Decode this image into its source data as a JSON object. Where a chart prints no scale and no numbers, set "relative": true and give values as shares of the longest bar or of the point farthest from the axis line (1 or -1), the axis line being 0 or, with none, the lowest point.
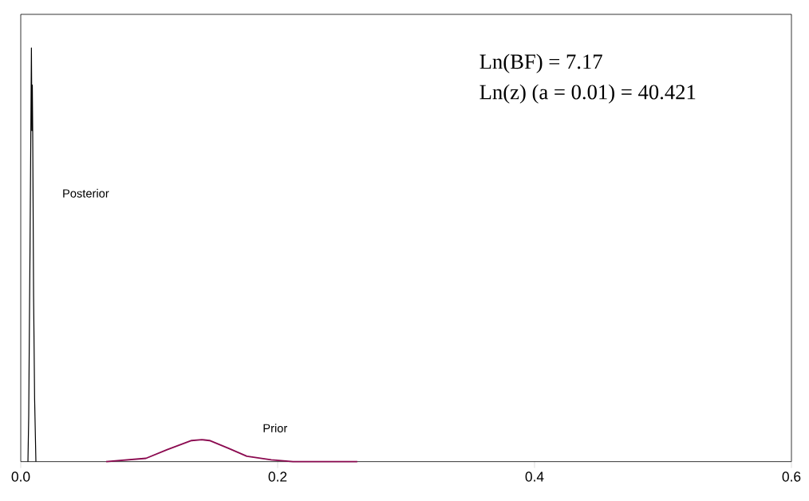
{
  "chart_data": {
    "type": "line",
    "relative": true,
    "x": [
      0.0056,
      0.0062,
      0.0072,
      0.0083,
      0.0087,
      0.009,
      0.0093,
      0.01,
      0.0108,
      0.0118
    ],
    "series": [
      {
        "name": "Posterior",
        "color": "#000000",
        "values": [
          0,
          0.11,
          0.51,
          1.0,
          0.8,
          0.91,
          0.8,
          0.4,
          0.15,
          0
        ]
      },
      {
        "name": "Prior",
        "color": "#8b0a50",
        "x": [
          0.0665,
          0.0975,
          0.114,
          0.133,
          0.141,
          0.147,
          0.162,
          0.176,
          0.195,
          0.212,
          0.262
        ],
        "values": [
          0,
          0.008,
          0.029,
          0.051,
          0.053,
          0.051,
          0.032,
          0.013,
          0.0045,
          0,
          0
        ]
      }
    ],
    "xlim": [
      0,
      0.6
    ],
    "xticks": [
      {
        "value": 0,
        "label": "0.0"
      },
      0.2,
      0.4,
      0.6
    ],
    "annotations": [
      "Ln(BF) = 7.17",
      "Ln(z) (a = 0.01) = 40.421"
    ],
    "marker": "none",
    "line_style": "solid"
  }
}
